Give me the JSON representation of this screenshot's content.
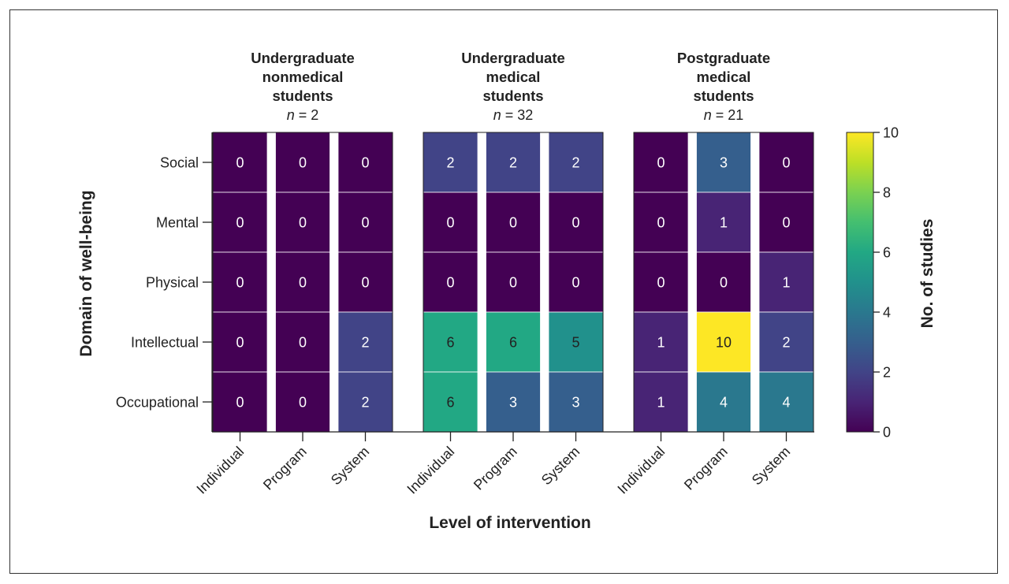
{
  "chart_data": {
    "type": "heatmap",
    "xlabel": "Level of intervention",
    "ylabel": "Domain of well-being",
    "colorbar_label": "No. of studies",
    "colorbar_range": [
      0,
      10
    ],
    "colorbar_ticks": [
      "0",
      "2",
      "4",
      "6",
      "8",
      "10"
    ],
    "rows": [
      "Social",
      "Mental",
      "Physical",
      "Intellectual",
      "Occupational"
    ],
    "groups": [
      {
        "title_lines": [
          "Undergraduate",
          "nonmedical",
          "students"
        ],
        "n_label": "n",
        "n_value": " = 2",
        "columns": [
          "Individual",
          "Program",
          "System"
        ],
        "values": [
          [
            0,
            0,
            0
          ],
          [
            0,
            0,
            0
          ],
          [
            0,
            0,
            0
          ],
          [
            0,
            0,
            2
          ],
          [
            0,
            0,
            2
          ]
        ]
      },
      {
        "title_lines": [
          "Undergraduate",
          "medical",
          "students"
        ],
        "n_label": "n",
        "n_value": " = 32",
        "columns": [
          "Individual",
          "Program",
          "System"
        ],
        "values": [
          [
            2,
            2,
            2
          ],
          [
            0,
            0,
            0
          ],
          [
            0,
            0,
            0
          ],
          [
            6,
            6,
            5
          ],
          [
            6,
            3,
            3
          ]
        ]
      },
      {
        "title_lines": [
          "Postgraduate",
          "medical",
          "students"
        ],
        "n_label": "n",
        "n_value": " = 21",
        "columns": [
          "Individual",
          "Program",
          "System"
        ],
        "values": [
          [
            0,
            3,
            0
          ],
          [
            0,
            1,
            0
          ],
          [
            0,
            0,
            1
          ],
          [
            1,
            10,
            2
          ],
          [
            1,
            4,
            4
          ]
        ]
      }
    ],
    "colormap": "viridis"
  }
}
